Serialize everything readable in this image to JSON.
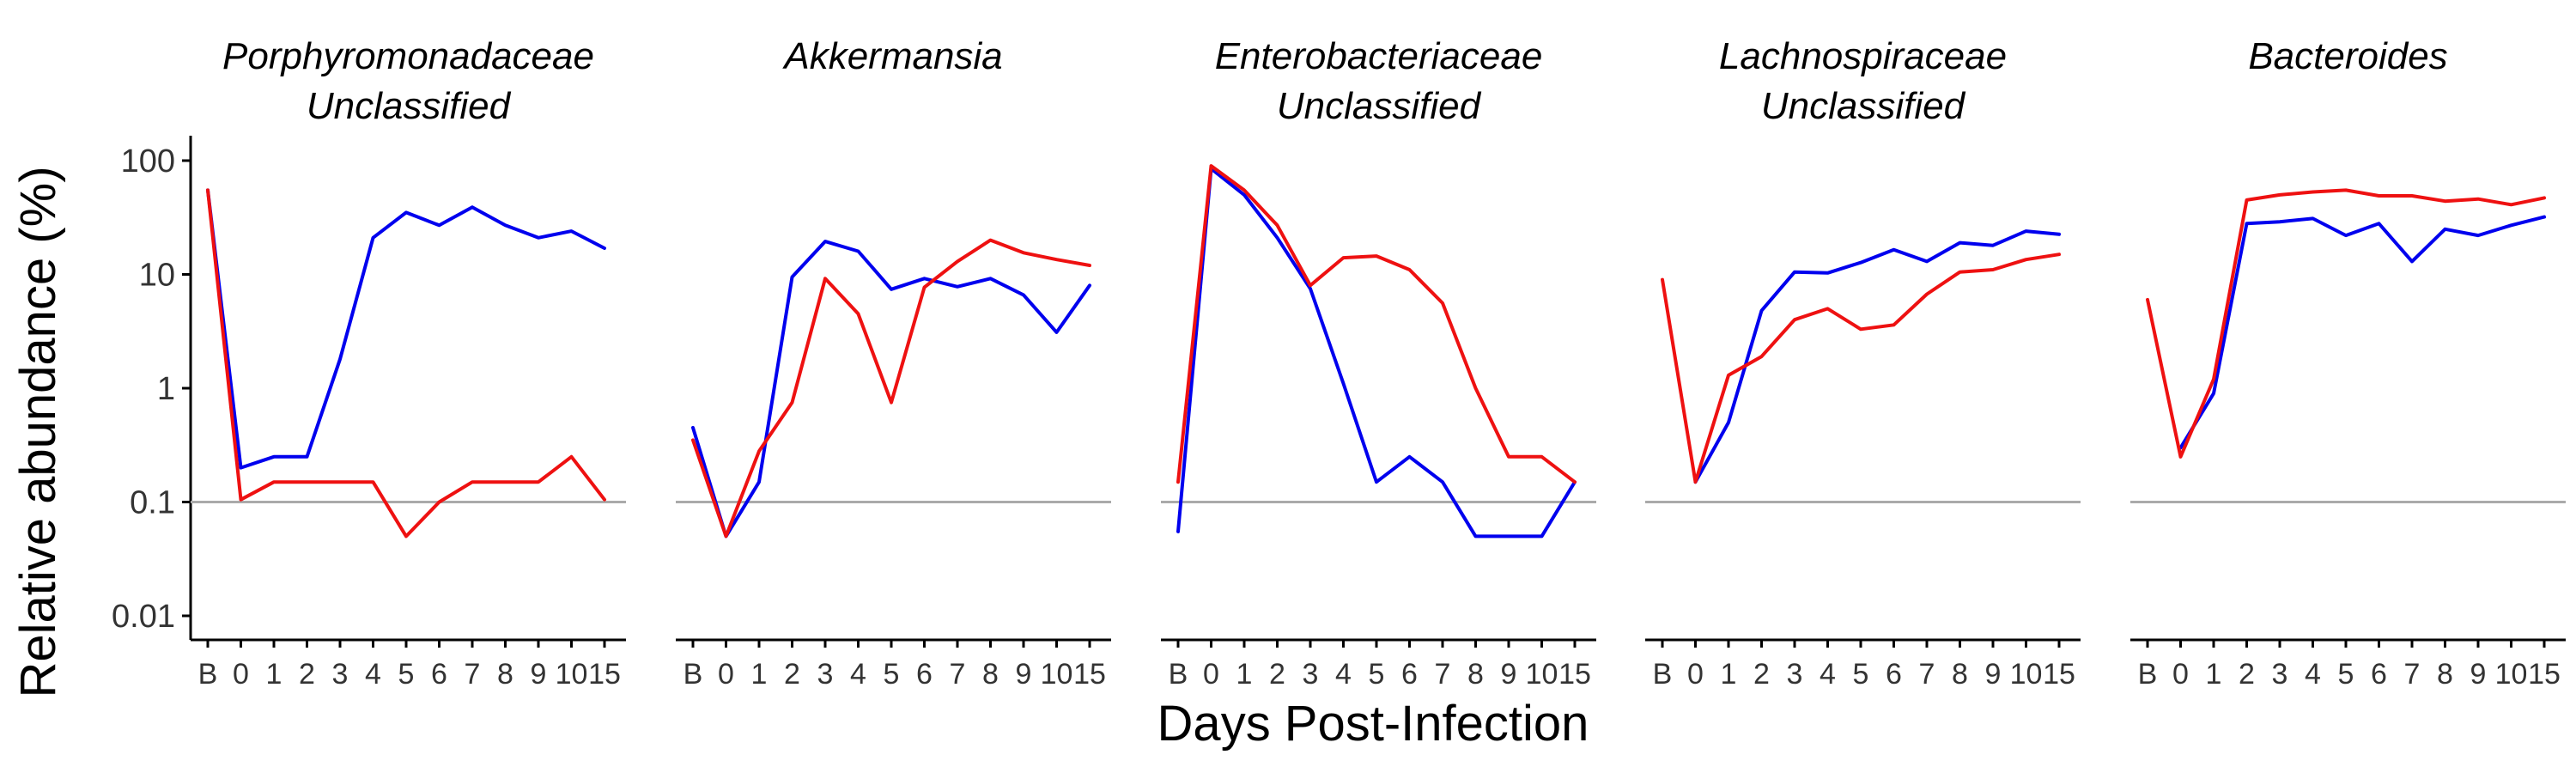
{
  "chart_data": {
    "type": "line",
    "xlabel": "Days Post-Infection",
    "ylabel": "Relative abundance (%)",
    "yscale": "log",
    "ylim": [
      0.006,
      150
    ],
    "yticks": [
      100,
      10,
      1,
      0.1,
      0.01
    ],
    "ytick_labels": [
      "100",
      "10",
      "1",
      "0.1",
      "0.01"
    ],
    "categories": [
      "B",
      "0",
      "1",
      "2",
      "3",
      "4",
      "5",
      "6",
      "7",
      "8",
      "9",
      "10",
      "15"
    ],
    "reference_line": 0.1,
    "grid": false,
    "legend": "none",
    "colors": {
      "blue": "#0000ee",
      "red": "#ee1111",
      "reference": "#aaaaaa",
      "axis": "#000000"
    },
    "panels": [
      {
        "title_lines": [
          "Porphyromonadaceae",
          "Unclassified"
        ],
        "series": [
          {
            "color": "#0000ee",
            "values": [
              55,
              0.2,
              0.25,
              0.25,
              1.8,
              21,
              35,
              27,
              39,
              27,
              21,
              24,
              17
            ]
          },
          {
            "color": "#ee1111",
            "values": [
              55,
              0.105,
              0.15,
              0.15,
              0.15,
              0.15,
              0.05,
              0.1,
              0.15,
              0.15,
              0.15,
              0.25,
              0.105
            ]
          }
        ]
      },
      {
        "title_lines": [
          "Akkermansia"
        ],
        "series": [
          {
            "color": "#0000ee",
            "values": [
              0.45,
              0.05,
              0.15,
              9.5,
              19.5,
              16,
              7.4,
              9.2,
              7.8,
              9.2,
              6.6,
              3.1,
              8
            ]
          },
          {
            "color": "#ee1111",
            "values": [
              0.35,
              0.05,
              0.28,
              0.75,
              9.2,
              4.5,
              0.75,
              7.7,
              13,
              20,
              15.5,
              13.5,
              12
            ]
          }
        ]
      },
      {
        "title_lines": [
          "Enterobacteriaceae",
          "Unclassified"
        ],
        "series": [
          {
            "color": "#0000ee",
            "values": [
              0.055,
              85,
              50,
              21,
              7.5,
              1.1,
              0.15,
              0.25,
              0.15,
              0.05,
              0.05,
              0.05,
              0.15
            ]
          },
          {
            "color": "#ee1111",
            "values": [
              0.15,
              90,
              55,
              27,
              8,
              14,
              14.5,
              11,
              5.6,
              1,
              0.25,
              0.25,
              0.15
            ]
          }
        ]
      },
      {
        "title_lines": [
          "Lachnospiraceae",
          "Unclassified"
        ],
        "series": [
          {
            "color": "#0000ee",
            "values": [
              null,
              0.15,
              0.5,
              4.8,
              10.5,
              10.3,
              12.7,
              16.5,
              13,
              19,
              18,
              24,
              22.5
            ]
          },
          {
            "color": "#ee1111",
            "values": [
              9,
              0.15,
              1.3,
              1.9,
              4,
              5,
              3.3,
              3.6,
              6.7,
              10.5,
              11,
              13.5,
              15
            ]
          }
        ]
      },
      {
        "title_lines": [
          "Bacteroides"
        ],
        "series": [
          {
            "color": "#0000ee",
            "values": [
              null,
              0.3,
              0.9,
              28,
              29,
              31,
              22,
              28,
              13,
              25,
              22,
              27,
              32
            ]
          },
          {
            "color": "#ee1111",
            "values": [
              6,
              0.25,
              1.2,
              45,
              50,
              53,
              55,
              49,
              49,
              44,
              46,
              41,
              47
            ]
          }
        ]
      }
    ]
  }
}
